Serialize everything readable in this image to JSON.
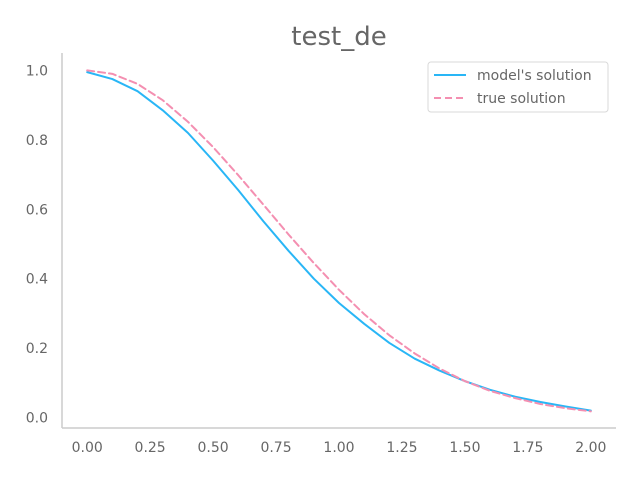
{
  "chart_data": {
    "type": "line",
    "title": "test_de",
    "xlabel": "",
    "ylabel": "",
    "xlim": [
      -0.1,
      2.1
    ],
    "ylim": [
      -0.03,
      1.05
    ],
    "grid": false,
    "legend_position": "top-right",
    "x_ticks": [
      "0.00",
      "0.25",
      "0.50",
      "0.75",
      "1.00",
      "1.25",
      "1.50",
      "1.75",
      "2.00"
    ],
    "y_ticks": [
      "0.0",
      "0.2",
      "0.4",
      "0.6",
      "0.8",
      "1.0"
    ],
    "series": [
      {
        "name": "model's solution",
        "color": "#29b6f6",
        "style": "solid",
        "x": [
          0.0,
          0.1,
          0.2,
          0.3,
          0.4,
          0.5,
          0.6,
          0.7,
          0.8,
          0.9,
          1.0,
          1.1,
          1.2,
          1.3,
          1.4,
          1.5,
          1.6,
          1.7,
          1.8,
          1.9,
          2.0
        ],
        "y": [
          0.995,
          0.975,
          0.94,
          0.885,
          0.82,
          0.74,
          0.655,
          0.565,
          0.48,
          0.4,
          0.33,
          0.27,
          0.215,
          0.17,
          0.135,
          0.105,
          0.08,
          0.06,
          0.045,
          0.032,
          0.02
        ]
      },
      {
        "name": "true solution",
        "color": "#f48fb1",
        "style": "dashed",
        "x": [
          0.0,
          0.1,
          0.2,
          0.3,
          0.4,
          0.5,
          0.6,
          0.7,
          0.8,
          0.9,
          1.0,
          1.1,
          1.2,
          1.3,
          1.4,
          1.5,
          1.6,
          1.7,
          1.8,
          1.9,
          2.0
        ],
        "y": [
          1.0,
          0.99,
          0.961,
          0.914,
          0.852,
          0.779,
          0.698,
          0.613,
          0.527,
          0.445,
          0.368,
          0.298,
          0.237,
          0.185,
          0.141,
          0.105,
          0.077,
          0.056,
          0.039,
          0.027,
          0.018
        ]
      }
    ]
  }
}
